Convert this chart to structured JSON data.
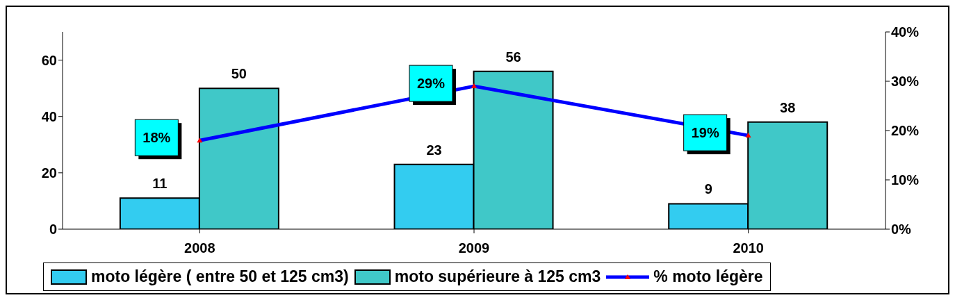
{
  "chart_data": {
    "type": "bar",
    "categories": [
      "2008",
      "2009",
      "2010"
    ],
    "series": [
      {
        "name": "moto légère ( entre 50 et 125 cm3)",
        "color": "#33ccf0",
        "values": [
          11,
          23,
          9
        ]
      },
      {
        "name": "moto supérieure à 125 cm3",
        "color": "#40c8c8",
        "values": [
          50,
          56,
          38
        ]
      },
      {
        "name": "% moto légère",
        "type": "line",
        "axis": "y2",
        "color": "#0000ff",
        "values": [
          18,
          29,
          19
        ],
        "value_labels": [
          "18%",
          "29%",
          "19%"
        ]
      }
    ],
    "data_labels": true,
    "ylim": [
      0,
      70
    ],
    "yticks": [
      0,
      20,
      40,
      60
    ],
    "y2lim": [
      0,
      40
    ],
    "y2ticks": [
      {
        "value": 0,
        "label": "0%"
      },
      {
        "value": 10,
        "label": "10%"
      },
      {
        "value": 20,
        "label": "20%"
      },
      {
        "value": 30,
        "label": "30%"
      },
      {
        "value": 40,
        "label": "40%"
      }
    ],
    "legend": "bottom",
    "grid": false,
    "marker": "triangle",
    "line_style": "solid"
  }
}
